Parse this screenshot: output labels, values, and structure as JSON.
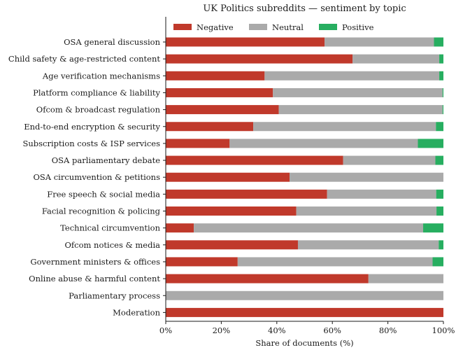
{
  "chart_data": {
    "type": "bar",
    "orientation": "horizontal",
    "stacked": true,
    "title": "UK Politics subreddits — sentiment by topic",
    "xlabel": "Share of documents (%)",
    "ylabel": "",
    "xlim": [
      0,
      100
    ],
    "xticks": [
      0,
      20,
      40,
      60,
      80,
      100
    ],
    "xtick_suffix": "%",
    "grid": false,
    "legend": {
      "placement": "top-left",
      "orientation": "horizontal"
    },
    "categories": [
      "OSA general discussion",
      "Child safety & age-restricted content",
      "Age verification mechanisms",
      "Platform compliance & liability",
      "Ofcom & broadcast regulation",
      "End-to-end encryption & security",
      "Subscription costs & ISP services",
      "OSA parliamentary debate",
      "OSA circumvention & petitions",
      "Free speech & social media",
      "Facial recognition & policing",
      "Technical circumvention",
      "Ofcom notices & media",
      "Government ministers & offices",
      "Online abuse & harmful content",
      "Parliamentary process",
      "Moderation"
    ],
    "series": [
      {
        "name": "Negative",
        "color": "#c0392b",
        "values": [
          57.2,
          67.3,
          35.6,
          38.6,
          40.7,
          31.5,
          23.0,
          63.9,
          44.6,
          58.1,
          47.0,
          10.1,
          47.6,
          25.9,
          73.0,
          0.0,
          100.0
        ]
      },
      {
        "name": "Neutral",
        "color": "#aaaaaa",
        "values": [
          39.4,
          31.2,
          62.9,
          61.1,
          59.0,
          65.8,
          67.8,
          33.2,
          55.4,
          39.3,
          50.5,
          82.6,
          50.7,
          70.2,
          27.0,
          100.0,
          0.0
        ]
      },
      {
        "name": "Positive",
        "color": "#27ae60",
        "values": [
          3.4,
          1.5,
          1.5,
          0.3,
          0.3,
          2.7,
          9.2,
          2.9,
          0.0,
          2.6,
          2.5,
          7.3,
          1.7,
          3.9,
          0.0,
          0.0,
          0.0
        ]
      }
    ]
  }
}
